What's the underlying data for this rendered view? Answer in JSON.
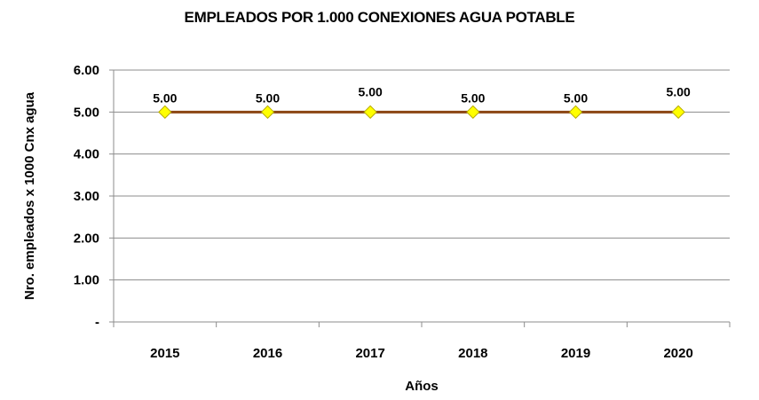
{
  "chart_data": {
    "type": "line",
    "title": "EMPLEADOS POR 1.000 CONEXIONES AGUA POTABLE",
    "xlabel": "Años",
    "ylabel": "Nro. empleados x 1000 Cnx agua",
    "categories": [
      "2015",
      "2016",
      "2017",
      "2018",
      "2019",
      "2020"
    ],
    "series": [
      {
        "values": [
          5.0,
          5.0,
          5.0,
          5.0,
          5.0,
          5.0
        ],
        "labels": [
          "5.00",
          "5.00",
          "5.00",
          "5.00",
          "5.00",
          "5.00"
        ],
        "color": "#8B4513",
        "marker_color": "#FFFF00"
      }
    ],
    "ylim": [
      0,
      6
    ],
    "yticks": [
      {
        "value": 0,
        "label": "-"
      },
      {
        "value": 1,
        "label": "1.00"
      },
      {
        "value": 2,
        "label": "2.00"
      },
      {
        "value": 3,
        "label": "3.00"
      },
      {
        "value": 4,
        "label": "4.00"
      },
      {
        "value": 5,
        "label": "5.00"
      },
      {
        "value": 6,
        "label": "6.00"
      }
    ],
    "grid": true,
    "legend": "none"
  }
}
